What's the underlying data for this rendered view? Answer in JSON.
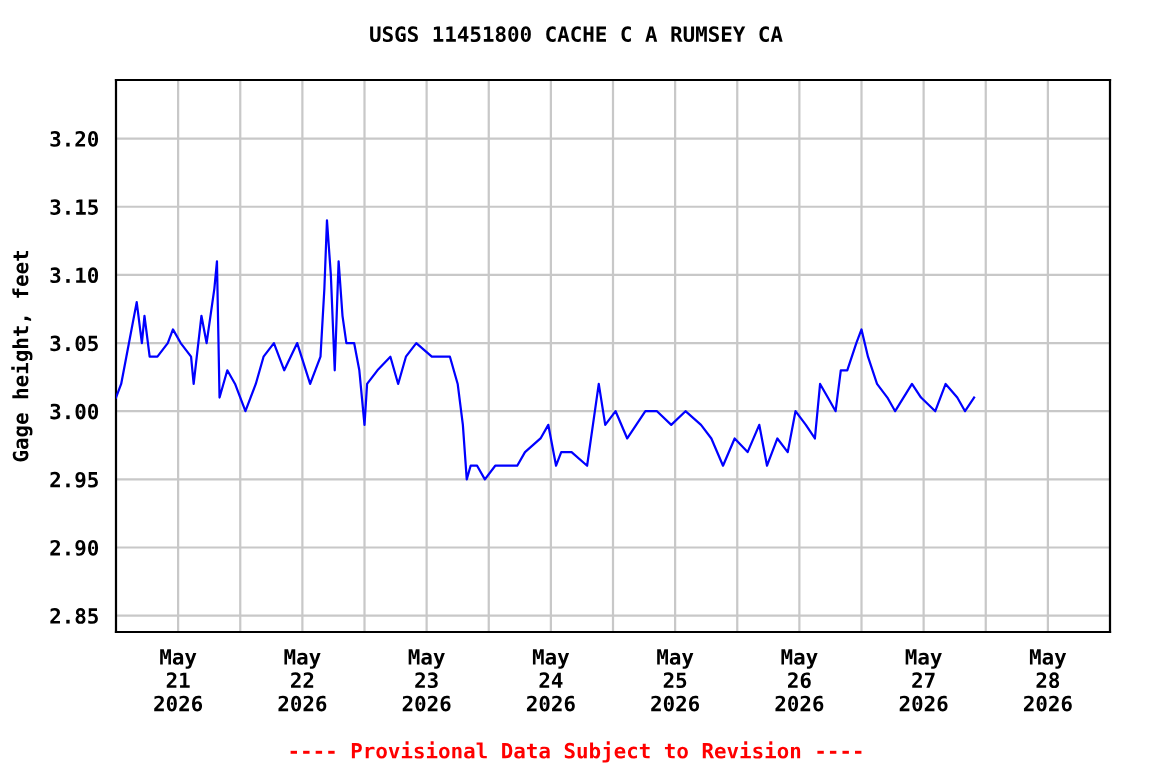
{
  "chart_data": {
    "type": "line",
    "title": "USGS 11451800 CACHE C A RUMSEY CA",
    "ylabel": "Gage height, feet",
    "annotations": [
      "---- Provisional Data Subject to Revision ----"
    ],
    "x": [
      "2026-05-21T00:00",
      "2026-05-21T01:00",
      "2026-05-21T02:00",
      "2026-05-21T04:00",
      "2026-05-21T05:00",
      "2026-05-21T05:30",
      "2026-05-21T06:30",
      "2026-05-21T08:00",
      "2026-05-21T10:00",
      "2026-05-21T11:00",
      "2026-05-21T12:30",
      "2026-05-21T14:30",
      "2026-05-21T15:00",
      "2026-05-21T16:30",
      "2026-05-21T17:30",
      "2026-05-21T19:00",
      "2026-05-21T19:30",
      "2026-05-21T20:00",
      "2026-05-21T21:30",
      "2026-05-21T23:00",
      "2026-05-22T01:00",
      "2026-05-22T03:00",
      "2026-05-22T04:30",
      "2026-05-22T06:30",
      "2026-05-22T08:30",
      "2026-05-22T11:00",
      "2026-05-22T13:30",
      "2026-05-22T15:30",
      "2026-05-22T16:15",
      "2026-05-22T16:45",
      "2026-05-22T17:30",
      "2026-05-22T18:15",
      "2026-05-22T19:00",
      "2026-05-22T19:45",
      "2026-05-22T20:30",
      "2026-05-22T22:00",
      "2026-05-22T23:00",
      "2026-05-23T00:00",
      "2026-05-23T00:30",
      "2026-05-23T02:30",
      "2026-05-23T05:00",
      "2026-05-23T06:30",
      "2026-05-23T08:00",
      "2026-05-23T10:00",
      "2026-05-23T13:00",
      "2026-05-23T16:30",
      "2026-05-23T18:00",
      "2026-05-23T19:00",
      "2026-05-23T19:45",
      "2026-05-23T20:30",
      "2026-05-23T21:45",
      "2026-05-23T23:15",
      "2026-05-24T01:15",
      "2026-05-24T05:30",
      "2026-05-24T07:00",
      "2026-05-24T10:00",
      "2026-05-24T11:30",
      "2026-05-24T13:00",
      "2026-05-24T14:00",
      "2026-05-24T16:00",
      "2026-05-24T19:00",
      "2026-05-24T19:45",
      "2026-05-24T21:15",
      "2026-05-24T22:30",
      "2026-05-25T00:30",
      "2026-05-25T02:45",
      "2026-05-25T06:15",
      "2026-05-25T08:30",
      "2026-05-25T11:15",
      "2026-05-25T14:00",
      "2026-05-25T17:00",
      "2026-05-25T19:00",
      "2026-05-25T21:15",
      "2026-05-25T23:30",
      "2026-05-26T02:00",
      "2026-05-26T04:15",
      "2026-05-26T05:45",
      "2026-05-26T07:45",
      "2026-05-26T09:45",
      "2026-05-26T11:15",
      "2026-05-26T13:15",
      "2026-05-26T15:00",
      "2026-05-26T16:00",
      "2026-05-26T17:30",
      "2026-05-26T19:00",
      "2026-05-26T20:00",
      "2026-05-26T21:15",
      "2026-05-26T23:00",
      "2026-05-27T00:00",
      "2026-05-27T01:15",
      "2026-05-27T03:00",
      "2026-05-27T05:00",
      "2026-05-27T06:30",
      "2026-05-27T09:45",
      "2026-05-27T11:30",
      "2026-05-27T14:15",
      "2026-05-27T16:15",
      "2026-05-27T18:30",
      "2026-05-27T20:00",
      "2026-05-27T21:45"
    ],
    "series": [
      {
        "color": "#0000ff",
        "values": [
          3.01,
          3.02,
          3.04,
          3.08,
          3.05,
          3.07,
          3.04,
          3.04,
          3.05,
          3.06,
          3.05,
          3.04,
          3.02,
          3.07,
          3.05,
          3.09,
          3.11,
          3.01,
          3.03,
          3.02,
          3.0,
          3.02,
          3.04,
          3.05,
          3.03,
          3.05,
          3.02,
          3.04,
          3.09,
          3.14,
          3.1,
          3.03,
          3.11,
          3.07,
          3.05,
          3.05,
          3.03,
          2.99,
          3.02,
          3.03,
          3.04,
          3.02,
          3.04,
          3.05,
          3.04,
          3.04,
          3.02,
          2.99,
          2.95,
          2.96,
          2.96,
          2.95,
          2.96,
          2.96,
          2.97,
          2.98,
          2.99,
          2.96,
          2.97,
          2.97,
          2.96,
          2.98,
          3.02,
          2.99,
          3.0,
          2.98,
          3.0,
          3.0,
          2.99,
          3.0,
          2.99,
          2.98,
          2.96,
          2.98,
          2.97,
          2.99,
          2.96,
          2.98,
          2.97,
          3.0,
          2.99,
          2.98,
          3.02,
          3.01,
          3.0,
          3.03,
          3.03,
          3.05,
          3.06,
          3.04,
          3.02,
          3.01,
          3.0,
          3.02,
          3.01,
          3.0,
          3.02,
          3.01,
          3.0,
          3.01
        ]
      }
    ],
    "xlim": [
      "2026-05-21T00:00",
      "2026-05-29T00:00"
    ],
    "xticks": [
      {
        "value": "2026-05-21T12:00",
        "label": "May\n21\n2026"
      },
      {
        "value": "2026-05-22T00:00",
        "label": null
      },
      {
        "value": "2026-05-22T12:00",
        "label": "May\n22\n2026"
      },
      {
        "value": "2026-05-23T00:00",
        "label": null
      },
      {
        "value": "2026-05-23T12:00",
        "label": "May\n23\n2026"
      },
      {
        "value": "2026-05-24T00:00",
        "label": null
      },
      {
        "value": "2026-05-24T12:00",
        "label": "May\n24\n2026"
      },
      {
        "value": "2026-05-25T00:00",
        "label": null
      },
      {
        "value": "2026-05-25T12:00",
        "label": "May\n25\n2026"
      },
      {
        "value": "2026-05-26T00:00",
        "label": null
      },
      {
        "value": "2026-05-26T12:00",
        "label": "May\n26\n2026"
      },
      {
        "value": "2026-05-27T00:00",
        "label": null
      },
      {
        "value": "2026-05-27T12:00",
        "label": "May\n27\n2026"
      },
      {
        "value": "2026-05-28T00:00",
        "label": null
      },
      {
        "value": "2026-05-28T12:00",
        "label": "May\n28\n2026"
      }
    ],
    "ylim": [
      2.838,
      3.243
    ],
    "yticks": [
      {
        "value": 2.85,
        "label": "2.85"
      },
      {
        "value": 2.9,
        "label": "2.90"
      },
      {
        "value": 2.95,
        "label": "2.95"
      },
      {
        "value": 3.0,
        "label": "3.00"
      },
      {
        "value": 3.05,
        "label": "3.05"
      },
      {
        "value": 3.1,
        "label": "3.10"
      },
      {
        "value": 3.15,
        "label": "3.15"
      },
      {
        "value": 3.2,
        "label": "3.20"
      }
    ],
    "grid": true
  }
}
